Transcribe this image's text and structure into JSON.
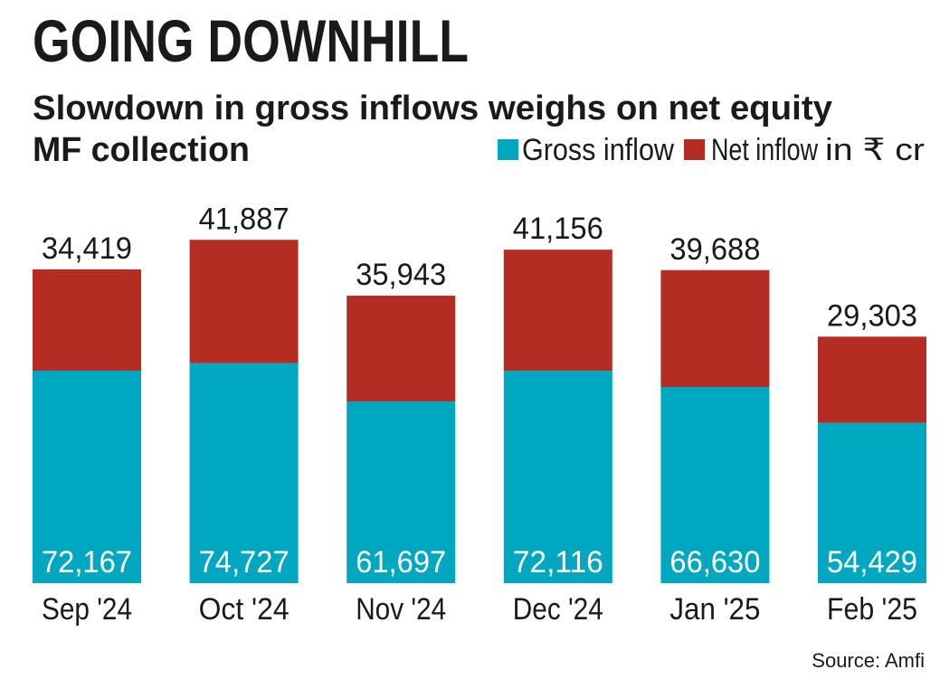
{
  "chart_data": {
    "type": "bar",
    "stacked": true,
    "title": "GOING DOWNHILL",
    "subtitle": "Slowdown in gross inflows weighs on net equity MF collection",
    "subtitle_line1": "Slowdown in gross inflows weighs on net equity",
    "subtitle_line2": "MF collection",
    "unit": "in ₹ cr",
    "categories": [
      "Sep '24",
      "Oct '24",
      "Nov '24",
      "Dec '24",
      "Jan '25",
      "Feb '25"
    ],
    "series": [
      {
        "name": "Gross inflow",
        "color": "#00a7c0",
        "values": [
          72167,
          74727,
          61697,
          72116,
          66630,
          54429
        ],
        "labels": [
          "72,167",
          "74,727",
          "61,697",
          "72,116",
          "66,630",
          "54,429"
        ]
      },
      {
        "name": "Net inflow",
        "color": "#b52d22",
        "values": [
          34419,
          41887,
          35943,
          41156,
          39688,
          29303
        ],
        "labels": [
          "34,419",
          "41,887",
          "35,943",
          "41,156",
          "39,688",
          "29,303"
        ]
      }
    ],
    "legend_position": "top-right",
    "grid": false,
    "source": "Source: Amfi"
  }
}
